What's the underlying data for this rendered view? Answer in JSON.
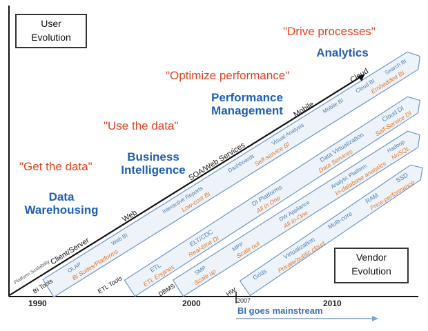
{
  "boxes": {
    "user_evolution": [
      "User",
      "Evolution"
    ],
    "vendor_evolution": [
      "Vendor",
      "Evolution"
    ]
  },
  "quotes": [
    "\"Get the data\"",
    "\"Use the data\"",
    "\"Optimize performance\"",
    "\"Drive processes\""
  ],
  "eras": [
    [
      "Data",
      "Warehousing"
    ],
    [
      "Business",
      "Intelligence"
    ],
    [
      "Performance",
      "Management"
    ],
    [
      "Analytics"
    ]
  ],
  "years": [
    "1990",
    "2000",
    "2007",
    "2010"
  ],
  "mainstream": "BI goes mainstream",
  "platform_line": [
    "Client/Server",
    "Web",
    "SOA/Web Services",
    "Mobile",
    "Cloud"
  ],
  "band1": {
    "start": "BI Tools",
    "blue": [
      "OLAP",
      "Web BI",
      "Interactive Reports",
      "Dashboards",
      "Visual Analysis",
      "Mobile BI",
      "Cloud BI",
      "Search BI"
    ],
    "orange": [
      "BI Suites/Platforms",
      "Low-cost BI",
      "Self-service BI",
      "Embedded BI"
    ]
  },
  "band2": {
    "start": "ETL Tools",
    "blue": [
      "ETL",
      "ELT/CDC",
      "DI Platforms",
      "Data Virtualization",
      "Cloud DI"
    ],
    "orange": [
      "ETL Engines",
      "Real-time DI",
      "All in One",
      "Data Services",
      "Self-Service DI"
    ]
  },
  "band3": {
    "start": "DBMS",
    "blue": [
      "SMP",
      "MPP",
      "DW Appliance",
      "Analytic Platform",
      "Hadoop"
    ],
    "orange": [
      "Scale up",
      "Scale out",
      "All-in-One",
      "In-database analytics",
      "NoSQL"
    ]
  },
  "band4": {
    "start": "HW",
    "blue": [
      "Grids",
      "Virtualization",
      "Multi-core",
      "RAM",
      "SSD"
    ],
    "orange": [
      "Private/public cloud",
      "Price-performance"
    ]
  },
  "faded_label": "Platform Scalability",
  "colors": {
    "quote": "#e8401c",
    "era": "#1f5fb8",
    "band_text_blue": "#4a7fb5",
    "band_text_orange": "#e0782a",
    "band_fill": "#eef3f9",
    "band_stroke": "#6f97c4"
  }
}
